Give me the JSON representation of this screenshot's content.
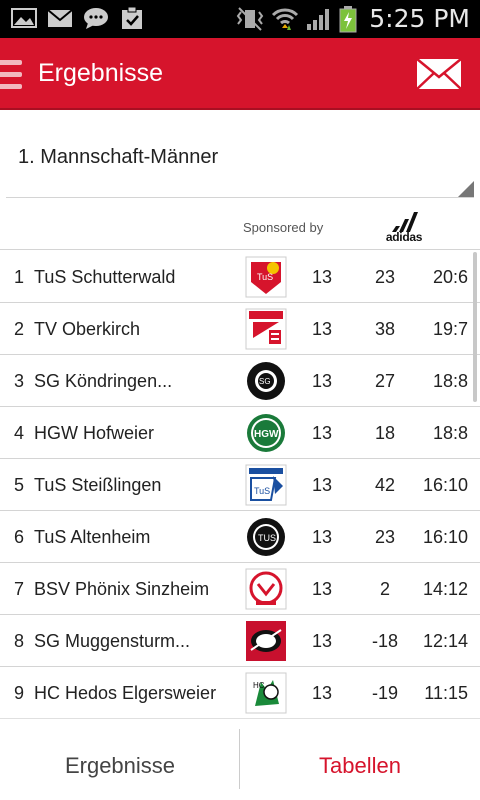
{
  "status_bar": {
    "time": "5:25 PM",
    "left_icons": [
      "image-icon",
      "gmail-icon",
      "sms-icon",
      "clipboard-icon"
    ],
    "right_icons": [
      "vibrate-icon",
      "wifi-icon",
      "signal-icon",
      "battery-charging-icon"
    ]
  },
  "action_bar": {
    "title": "Ergebnisse",
    "menu_icon": "menu-icon",
    "mail_icon": "mail-icon",
    "color": "#d6142c"
  },
  "dropdown": {
    "selected": "1. Mannschaft-Männer"
  },
  "sponsor": {
    "label": "Sponsored by",
    "brand": "adidas"
  },
  "table": {
    "rows": [
      {
        "rank": "1",
        "team": "TuS Schutterwald",
        "games": "13",
        "diff": "23",
        "points": "20:6",
        "logo": "tus-schutterwald-logo"
      },
      {
        "rank": "2",
        "team": "TV Oberkirch",
        "games": "13",
        "diff": "38",
        "points": "19:7",
        "logo": "tv-oberkirch-logo"
      },
      {
        "rank": "3",
        "team": "SG Köndringen...",
        "games": "13",
        "diff": "27",
        "points": "18:8",
        "logo": "sg-koendringen-logo"
      },
      {
        "rank": "4",
        "team": "HGW Hofweier",
        "games": "13",
        "diff": "18",
        "points": "18:8",
        "logo": "hgw-hofweier-logo"
      },
      {
        "rank": "5",
        "team": "TuS Steißlingen",
        "games": "13",
        "diff": "42",
        "points": "16:10",
        "logo": "tus-steisslingen-logo"
      },
      {
        "rank": "6",
        "team": "TuS Altenheim",
        "games": "13",
        "diff": "23",
        "points": "16:10",
        "logo": "tus-altenheim-logo"
      },
      {
        "rank": "7",
        "team": "BSV Phönix Sinzheim",
        "games": "13",
        "diff": "2",
        "points": "14:12",
        "logo": "bsv-phoenix-logo"
      },
      {
        "rank": "8",
        "team": "SG Muggensturm...",
        "games": "13",
        "diff": "-18",
        "points": "12:14",
        "logo": "sg-muggensturm-logo"
      },
      {
        "rank": "9",
        "team": "HC Hedos Elgersweier",
        "games": "13",
        "diff": "-19",
        "points": "11:15",
        "logo": "hc-hedos-logo"
      }
    ]
  },
  "bottom_nav": {
    "left": "Ergebnisse",
    "right": "Tabellen",
    "active_color": "#d6142c"
  }
}
